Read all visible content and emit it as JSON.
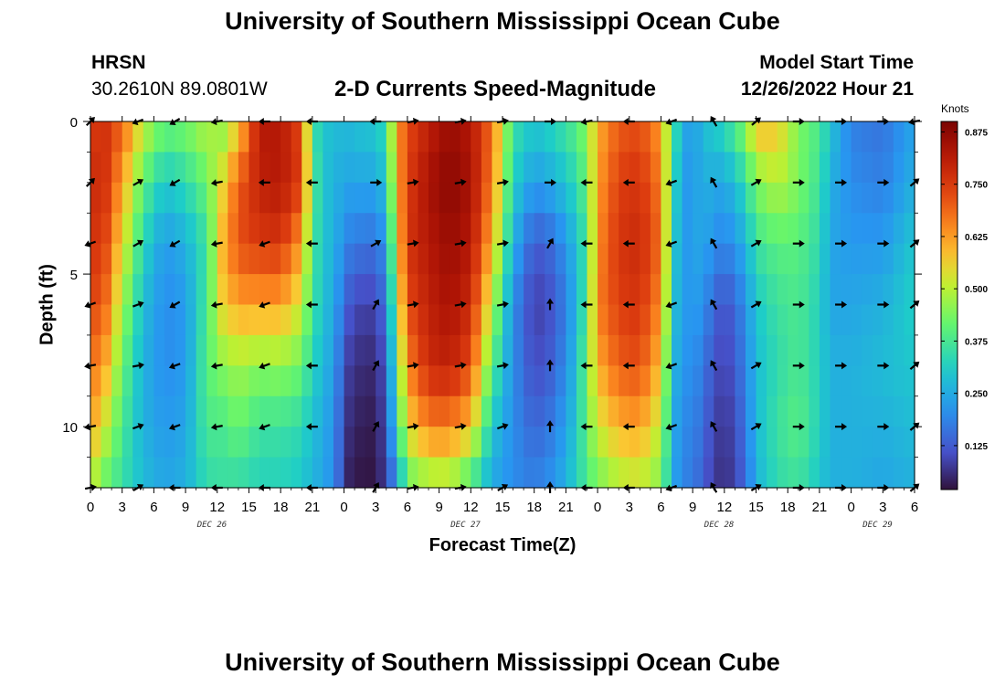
{
  "page": {
    "title": "University of Southern Mississippi Ocean Cube",
    "footer_title": "University of Southern Mississippi Ocean Cube",
    "station": "HRSN",
    "coords": "30.2610N  89.0801W",
    "subtitle": "2-D Currents Speed-Magnitude",
    "model_label": "Model Start Time",
    "model_time": "12/26/2022 Hour 21"
  },
  "chart_data": {
    "type": "heatmap",
    "xlabel": "Forecast Time(Z)",
    "ylabel": "Depth (ft)",
    "units": "Knots",
    "x_range": [
      0,
      78
    ],
    "y_range": [
      0,
      12
    ],
    "x_tick_hours": [
      0,
      3,
      6,
      9,
      12,
      15,
      18,
      21,
      24,
      27,
      30,
      33,
      36,
      39,
      42,
      45,
      48,
      51,
      54,
      57,
      60,
      63,
      66,
      69,
      72,
      75,
      78
    ],
    "x_tick_labels": [
      "0",
      "3",
      "6",
      "9",
      "12",
      "15",
      "18",
      "21",
      "0",
      "3",
      "6",
      "9",
      "12",
      "15",
      "18",
      "21",
      "0",
      "3",
      "6",
      "9",
      "12",
      "15",
      "18",
      "21",
      "0",
      "3",
      "6"
    ],
    "y_ticks": [
      0,
      5,
      10
    ],
    "y_tick_labels": [
      "0",
      "5",
      "10"
    ],
    "day_labels": [
      {
        "text": "DEC 26",
        "hour": 11.5
      },
      {
        "text": "DEC 27",
        "hour": 35.5
      },
      {
        "text": "DEC 28",
        "hour": 59.5
      },
      {
        "text": "DEC 29",
        "hour": 74.5
      }
    ],
    "colorbar_ticks": [
      0.125,
      0.25,
      0.375,
      0.5,
      0.625,
      0.75,
      0.875
    ],
    "colorbar_labels": [
      "0.125",
      "0.250",
      "0.375",
      "0.500",
      "0.625",
      "0.750",
      "0.875"
    ],
    "colorbar_range": [
      0.02,
      0.9
    ],
    "speed_keyframes": [
      {
        "h": 0,
        "v": [
          0.72,
          0.75,
          0.73,
          0.7,
          0.65,
          0.62,
          0.5
        ]
      },
      {
        "h": 1,
        "v": [
          0.78,
          0.8,
          0.78,
          0.74,
          0.66,
          0.55,
          0.42
        ]
      },
      {
        "h": 3,
        "v": [
          0.7,
          0.62,
          0.55,
          0.48,
          0.42,
          0.38,
          0.35
        ]
      },
      {
        "h": 5,
        "v": [
          0.52,
          0.4,
          0.33,
          0.28,
          0.26,
          0.26,
          0.28
        ]
      },
      {
        "h": 7,
        "v": [
          0.42,
          0.3,
          0.22,
          0.2,
          0.2,
          0.22,
          0.24
        ]
      },
      {
        "h": 9,
        "v": [
          0.44,
          0.34,
          0.26,
          0.22,
          0.22,
          0.24,
          0.26
        ]
      },
      {
        "h": 11,
        "v": [
          0.5,
          0.42,
          0.36,
          0.38,
          0.4,
          0.38,
          0.34
        ]
      },
      {
        "h": 12.5,
        "v": [
          0.45,
          0.55,
          0.6,
          0.56,
          0.45,
          0.38,
          0.35
        ]
      },
      {
        "h": 14,
        "v": [
          0.55,
          0.7,
          0.72,
          0.62,
          0.48,
          0.42,
          0.34
        ]
      },
      {
        "h": 16,
        "v": [
          0.82,
          0.8,
          0.75,
          0.62,
          0.45,
          0.36,
          0.32
        ]
      },
      {
        "h": 18,
        "v": [
          0.82,
          0.82,
          0.76,
          0.62,
          0.46,
          0.36,
          0.32
        ]
      },
      {
        "h": 20,
        "v": [
          0.72,
          0.74,
          0.62,
          0.52,
          0.42,
          0.34,
          0.3
        ]
      },
      {
        "h": 21,
        "v": [
          0.36,
          0.4,
          0.38,
          0.36,
          0.32,
          0.28,
          0.26
        ]
      },
      {
        "h": 22,
        "v": [
          0.3,
          0.3,
          0.3,
          0.3,
          0.28,
          0.26,
          0.24
        ]
      },
      {
        "h": 23,
        "v": [
          0.28,
          0.26,
          0.26,
          0.24,
          0.22,
          0.2,
          0.2
        ]
      },
      {
        "h": 24.5,
        "v": [
          0.28,
          0.24,
          0.18,
          0.12,
          0.08,
          0.06,
          0.04
        ]
      },
      {
        "h": 26,
        "v": [
          0.3,
          0.24,
          0.16,
          0.08,
          0.05,
          0.03,
          0.02
        ]
      },
      {
        "h": 27,
        "v": [
          0.3,
          0.24,
          0.16,
          0.1,
          0.06,
          0.04,
          0.03
        ]
      },
      {
        "h": 28,
        "v": [
          0.36,
          0.3,
          0.22,
          0.16,
          0.12,
          0.1,
          0.08
        ]
      },
      {
        "h": 29,
        "v": [
          0.62,
          0.6,
          0.55,
          0.48,
          0.4,
          0.34,
          0.2
        ]
      },
      {
        "h": 30,
        "v": [
          0.72,
          0.74,
          0.76,
          0.72,
          0.65,
          0.55,
          0.4
        ]
      },
      {
        "h": 32,
        "v": [
          0.8,
          0.84,
          0.82,
          0.8,
          0.78,
          0.66,
          0.45
        ]
      },
      {
        "h": 34,
        "v": [
          0.86,
          0.88,
          0.86,
          0.84,
          0.8,
          0.66,
          0.46
        ]
      },
      {
        "h": 36,
        "v": [
          0.82,
          0.84,
          0.82,
          0.78,
          0.72,
          0.58,
          0.36
        ]
      },
      {
        "h": 38,
        "v": [
          0.68,
          0.66,
          0.6,
          0.5,
          0.4,
          0.3,
          0.24
        ]
      },
      {
        "h": 40,
        "v": [
          0.36,
          0.32,
          0.26,
          0.2,
          0.2,
          0.2,
          0.2
        ]
      },
      {
        "h": 42,
        "v": [
          0.3,
          0.22,
          0.12,
          0.08,
          0.1,
          0.14,
          0.18
        ]
      },
      {
        "h": 44,
        "v": [
          0.34,
          0.26,
          0.16,
          0.12,
          0.14,
          0.18,
          0.22
        ]
      },
      {
        "h": 46,
        "v": [
          0.4,
          0.34,
          0.28,
          0.26,
          0.28,
          0.3,
          0.32
        ]
      },
      {
        "h": 47,
        "v": [
          0.46,
          0.42,
          0.38,
          0.4,
          0.44,
          0.42,
          0.38
        ]
      },
      {
        "h": 48,
        "v": [
          0.6,
          0.62,
          0.64,
          0.66,
          0.6,
          0.52,
          0.42
        ]
      },
      {
        "h": 50,
        "v": [
          0.7,
          0.74,
          0.76,
          0.74,
          0.7,
          0.6,
          0.48
        ]
      },
      {
        "h": 52,
        "v": [
          0.72,
          0.76,
          0.78,
          0.76,
          0.72,
          0.62,
          0.5
        ]
      },
      {
        "h": 54,
        "v": [
          0.62,
          0.66,
          0.68,
          0.64,
          0.58,
          0.5,
          0.44
        ]
      },
      {
        "h": 55,
        "v": [
          0.4,
          0.38,
          0.36,
          0.34,
          0.3,
          0.28,
          0.26
        ]
      },
      {
        "h": 56,
        "v": [
          0.26,
          0.22,
          0.2,
          0.2,
          0.2,
          0.18,
          0.18
        ]
      },
      {
        "h": 57,
        "v": [
          0.22,
          0.22,
          0.24,
          0.24,
          0.22,
          0.2,
          0.18
        ]
      },
      {
        "h": 58,
        "v": [
          0.28,
          0.26,
          0.24,
          0.2,
          0.16,
          0.14,
          0.12
        ]
      },
      {
        "h": 60,
        "v": [
          0.34,
          0.24,
          0.18,
          0.1,
          0.08,
          0.06,
          0.05
        ]
      },
      {
        "h": 62,
        "v": [
          0.46,
          0.34,
          0.26,
          0.2,
          0.18,
          0.16,
          0.14
        ]
      },
      {
        "h": 63,
        "v": [
          0.6,
          0.44,
          0.36,
          0.3,
          0.28,
          0.28,
          0.26
        ]
      },
      {
        "h": 65,
        "v": [
          0.58,
          0.5,
          0.4,
          0.36,
          0.34,
          0.36,
          0.34
        ]
      },
      {
        "h": 67,
        "v": [
          0.44,
          0.44,
          0.4,
          0.38,
          0.38,
          0.4,
          0.36
        ]
      },
      {
        "h": 69,
        "v": [
          0.38,
          0.36,
          0.34,
          0.32,
          0.32,
          0.32,
          0.3
        ]
      },
      {
        "h": 70,
        "v": [
          0.3,
          0.26,
          0.24,
          0.24,
          0.26,
          0.26,
          0.26
        ]
      },
      {
        "h": 72,
        "v": [
          0.18,
          0.2,
          0.22,
          0.24,
          0.26,
          0.26,
          0.26
        ]
      },
      {
        "h": 75,
        "v": [
          0.16,
          0.18,
          0.22,
          0.26,
          0.28,
          0.26,
          0.24
        ]
      },
      {
        "h": 78,
        "v": [
          0.24,
          0.26,
          0.3,
          0.32,
          0.3,
          0.28,
          0.26
        ]
      }
    ],
    "arrows_time_hours": [
      0,
      4.5,
      8,
      12,
      16.5,
      21,
      27,
      30.5,
      35,
      39,
      43.5,
      47,
      51,
      55,
      59,
      63,
      67,
      71,
      75,
      78
    ],
    "arrows_depth_ft": [
      0,
      2,
      4,
      6,
      8,
      10,
      12
    ],
    "arrows_deg": [
      [
        45,
        45,
        200,
        200,
        190,
        190,
        10
      ],
      [
        200,
        30,
        30,
        20,
        10,
        20,
        30
      ],
      [
        210,
        210,
        210,
        210,
        200,
        200,
        180
      ],
      [
        190,
        190,
        190,
        190,
        190,
        190,
        180
      ],
      [
        180,
        180,
        200,
        200,
        200,
        200,
        180
      ],
      [
        180,
        180,
        180,
        180,
        180,
        180,
        180
      ],
      [
        180,
        0,
        30,
        60,
        60,
        60,
        60
      ],
      [
        10,
        10,
        10,
        10,
        10,
        10,
        10
      ],
      [
        10,
        10,
        10,
        10,
        10,
        10,
        10
      ],
      [
        10,
        10,
        10,
        10,
        10,
        20,
        30
      ],
      [
        0,
        0,
        60,
        90,
        90,
        90,
        90
      ],
      [
        190,
        180,
        180,
        180,
        180,
        180,
        180
      ],
      [
        180,
        180,
        180,
        180,
        180,
        180,
        180
      ],
      [
        200,
        200,
        200,
        200,
        200,
        200,
        200
      ],
      [
        120,
        120,
        120,
        120,
        120,
        120,
        120
      ],
      [
        40,
        30,
        30,
        30,
        30,
        30,
        30
      ],
      [
        0,
        0,
        0,
        0,
        0,
        0,
        0
      ],
      [
        0,
        0,
        0,
        0,
        0,
        0,
        0
      ],
      [
        0,
        0,
        0,
        0,
        0,
        0,
        0
      ],
      [
        190,
        40,
        40,
        40,
        40,
        40,
        40
      ]
    ]
  }
}
